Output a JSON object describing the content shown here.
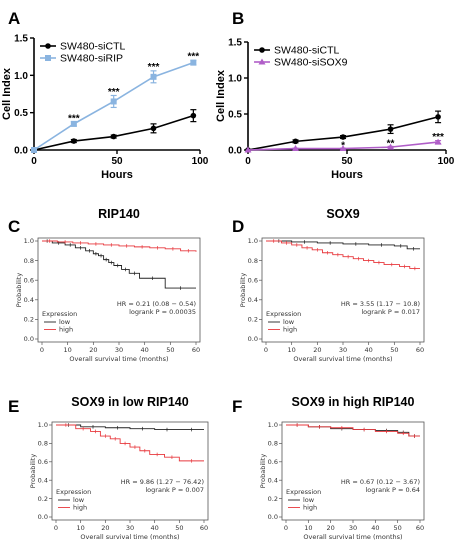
{
  "chart_data": [
    {
      "panel": "A",
      "type": "line",
      "xlabel": "Hours",
      "ylabel": "Cell Index",
      "xlim": [
        0,
        100
      ],
      "ylim": [
        0,
        1.5
      ],
      "xticks": [
        "0",
        "50",
        "100"
      ],
      "yticks": [
        "0.0",
        "0.5",
        "1.0",
        "1.5"
      ],
      "x": [
        0,
        24,
        48,
        72,
        96
      ],
      "legend_position": "top-left",
      "series": [
        {
          "name": "SW480-siCTL",
          "color": "#000000",
          "marker": "circle",
          "values": [
            0.0,
            0.12,
            0.18,
            0.29,
            0.46
          ],
          "errors": [
            0.0,
            0.02,
            0.02,
            0.06,
            0.08
          ]
        },
        {
          "name": "SW480-siRIP",
          "color": "#8ab4e0",
          "marker": "square",
          "values": [
            0.0,
            0.35,
            0.65,
            0.98,
            1.17
          ],
          "errors": [
            0.0,
            0.03,
            0.08,
            0.08,
            0.03
          ]
        }
      ],
      "annotations": [
        {
          "x": 24,
          "text": "***",
          "y": 0.42
        },
        {
          "x": 48,
          "text": "***",
          "y": 0.78
        },
        {
          "x": 72,
          "text": "***",
          "y": 1.11
        },
        {
          "x": 96,
          "text": "***",
          "y": 1.25
        }
      ]
    },
    {
      "panel": "B",
      "type": "line",
      "xlabel": "Hours",
      "ylabel": "Cell Index",
      "xlim": [
        0,
        100
      ],
      "ylim": [
        0,
        1.5
      ],
      "xticks": [
        "0",
        "50",
        "100"
      ],
      "yticks": [
        "0.0",
        "0.5",
        "1.0",
        "1.5"
      ],
      "x": [
        0,
        24,
        48,
        72,
        96
      ],
      "legend_position": "top-left",
      "series": [
        {
          "name": "SW480-siCTL",
          "color": "#000000",
          "marker": "circle",
          "values": [
            0.0,
            0.12,
            0.18,
            0.29,
            0.46
          ],
          "errors": [
            0.0,
            0.02,
            0.02,
            0.06,
            0.08
          ]
        },
        {
          "name": "SW480-siSOX9",
          "color": "#b05ec8",
          "marker": "triangle",
          "values": [
            0.0,
            0.02,
            0.02,
            0.04,
            0.11
          ],
          "errors": [
            0.0,
            0.005,
            0.005,
            0.01,
            0.02
          ]
        }
      ],
      "annotations": [
        {
          "x": 48,
          "text": "*",
          "y": 0.06
        },
        {
          "x": 72,
          "text": "**",
          "y": 0.09
        },
        {
          "x": 96,
          "text": "***",
          "y": 0.18
        }
      ]
    },
    {
      "panel": "C",
      "type": "line",
      "title": "RIP140",
      "xlabel": "Overall survival time (months)",
      "ylabel": "Probability",
      "xlim": [
        0,
        60
      ],
      "ylim": [
        0,
        1.0
      ],
      "xticks": [
        0,
        10,
        20,
        30,
        40,
        50,
        60
      ],
      "yticks": [
        "0.0",
        "0.2",
        "0.4",
        "0.6",
        "0.8",
        "1.0"
      ],
      "legend_title": "Expression",
      "series": [
        {
          "name": "low",
          "color": "#222222",
          "x": [
            0,
            4,
            9,
            13,
            17,
            20,
            22,
            24,
            26,
            28,
            31,
            34,
            38,
            48,
            60
          ],
          "values": [
            1.0,
            0.98,
            0.96,
            0.93,
            0.9,
            0.87,
            0.85,
            0.81,
            0.78,
            0.75,
            0.71,
            0.67,
            0.62,
            0.52,
            0.52
          ]
        },
        {
          "name": "high",
          "color": "#e8383d",
          "x": [
            0,
            6,
            12,
            18,
            24,
            30,
            36,
            42,
            48,
            54,
            60
          ],
          "values": [
            1.0,
            0.99,
            0.98,
            0.97,
            0.96,
            0.95,
            0.94,
            0.93,
            0.92,
            0.9,
            0.89
          ]
        }
      ],
      "stats": {
        "hr": "HR = 0.21 (0.08 − 0.54)",
        "p": "logrank P = 0.00035"
      }
    },
    {
      "panel": "D",
      "type": "line",
      "title": "SOX9",
      "xlabel": "Overall survival time (months)",
      "ylabel": "Probability",
      "xlim": [
        0,
        60
      ],
      "ylim": [
        0,
        1.0
      ],
      "xticks": [
        0,
        10,
        20,
        30,
        40,
        50,
        60
      ],
      "yticks": [
        "0.0",
        "0.2",
        "0.4",
        "0.6",
        "0.8",
        "1.0"
      ],
      "legend_title": "Expression",
      "series": [
        {
          "name": "low",
          "color": "#222222",
          "x": [
            0,
            10,
            20,
            30,
            40,
            50,
            55,
            60
          ],
          "values": [
            1.0,
            0.99,
            0.98,
            0.97,
            0.96,
            0.95,
            0.92,
            0.92
          ]
        },
        {
          "name": "high",
          "color": "#e8383d",
          "x": [
            0,
            6,
            10,
            14,
            18,
            22,
            26,
            30,
            34,
            38,
            42,
            46,
            52,
            56,
            60
          ],
          "values": [
            1.0,
            0.98,
            0.96,
            0.93,
            0.91,
            0.88,
            0.86,
            0.84,
            0.82,
            0.8,
            0.78,
            0.76,
            0.74,
            0.72,
            0.72
          ]
        }
      ],
      "stats": {
        "hr": "HR = 3.55 (1.17 − 10.8)",
        "p": "logrank P = 0.017"
      }
    },
    {
      "panel": "E",
      "type": "line",
      "title": "SOX9 in low RIP140",
      "xlabel": "Overall survival time (months)",
      "ylabel": "Probability",
      "xlim": [
        0,
        60
      ],
      "ylim": [
        0,
        1.0
      ],
      "xticks": [
        0,
        10,
        20,
        30,
        40,
        50,
        60
      ],
      "yticks": [
        "0.0",
        "0.2",
        "0.4",
        "0.6",
        "0.8",
        "1.0"
      ],
      "legend_title": "Expression",
      "series": [
        {
          "name": "low",
          "color": "#222222",
          "x": [
            0,
            10,
            20,
            30,
            40,
            50,
            60
          ],
          "values": [
            1.0,
            0.98,
            0.97,
            0.96,
            0.95,
            0.95,
            0.95
          ]
        },
        {
          "name": "high",
          "color": "#e8383d",
          "x": [
            0,
            8,
            14,
            18,
            22,
            26,
            30,
            34,
            38,
            44,
            50,
            60
          ],
          "values": [
            1.0,
            0.96,
            0.93,
            0.88,
            0.85,
            0.8,
            0.76,
            0.72,
            0.68,
            0.65,
            0.61,
            0.61
          ]
        }
      ],
      "stats": {
        "hr": "HR = 9.86 (1.27 − 76.42)",
        "p": "logrank P = 0.007"
      }
    },
    {
      "panel": "F",
      "type": "line",
      "title": "SOX9 in high RIP140",
      "xlabel": "Overall survival time (months)",
      "ylabel": "Probability",
      "xlim": [
        0,
        60
      ],
      "ylim": [
        0,
        1.0
      ],
      "xticks": [
        0,
        10,
        20,
        30,
        40,
        50,
        60
      ],
      "yticks": [
        "0.0",
        "0.2",
        "0.4",
        "0.6",
        "0.8",
        "1.0"
      ],
      "legend_title": "Expression",
      "series": [
        {
          "name": "low",
          "color": "#222222",
          "x": [
            0,
            10,
            20,
            30,
            40,
            50,
            55,
            60
          ],
          "values": [
            1.0,
            0.98,
            0.96,
            0.95,
            0.94,
            0.92,
            0.88,
            0.88
          ]
        },
        {
          "name": "high",
          "color": "#e8383d",
          "x": [
            0,
            10,
            20,
            30,
            40,
            50,
            55,
            60
          ],
          "values": [
            1.0,
            0.98,
            0.97,
            0.95,
            0.93,
            0.91,
            0.88,
            0.88
          ]
        }
      ],
      "stats": {
        "hr": "HR = 0.67 (0.12 − 3.67)",
        "p": "logrank P = 0.64"
      }
    }
  ]
}
